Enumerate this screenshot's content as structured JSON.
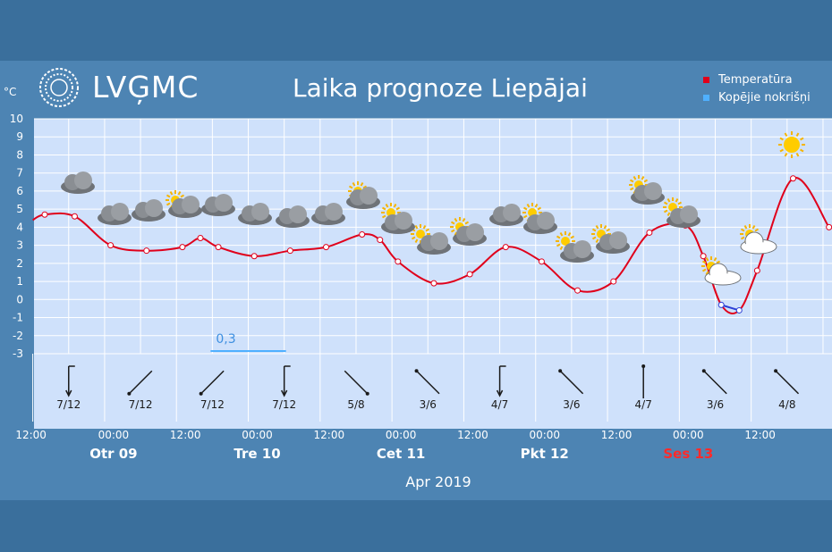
{
  "header": {
    "logo_text": "LVĢMC",
    "title": "Laika prognoze Liepājai",
    "unit": "°C"
  },
  "legend": [
    {
      "label": "Temperatūra",
      "color": "#e0001b"
    },
    {
      "label": "Kopējie nokrišņi",
      "color": "#4fb0ff"
    }
  ],
  "chart_data": {
    "type": "line",
    "title": "Laika prognoze Liepājai",
    "ylabel": "°C",
    "xlabel": "Apr 2019",
    "ylim": [
      -3,
      10
    ],
    "yticks": [
      "-3",
      "-2",
      "-1",
      "0",
      "1",
      "2",
      "3",
      "4",
      "5",
      "6",
      "7",
      "8",
      "9",
      "10"
    ],
    "grid": true,
    "legend_position": "top-right",
    "x_ticks": [
      "12:00",
      "00:00",
      "12:00",
      "00:00",
      "12:00",
      "00:00",
      "12:00",
      "00:00",
      "12:00",
      "00:00",
      "12:00"
    ],
    "x_tick_hours": [
      12,
      24,
      36,
      48,
      60,
      72,
      84,
      96,
      108,
      120,
      132
    ],
    "day_labels": [
      {
        "label": "Otr 09",
        "hour": 24,
        "color": "#ffffff"
      },
      {
        "label": "Tre 10",
        "hour": 48,
        "color": "#ffffff"
      },
      {
        "label": "Cet 11",
        "hour": 72,
        "color": "#ffffff"
      },
      {
        "label": "Pkt 12",
        "hour": 96,
        "color": "#ffffff"
      },
      {
        "label": "Ses 13",
        "hour": 120,
        "color": "#ff2a2a"
      }
    ],
    "series": [
      {
        "name": "Temperatūra",
        "color": "#e0001b",
        "below_zero_color": "#2b3fd6",
        "hours": [
          8,
          13,
          19,
          25,
          31,
          34,
          37,
          43,
          49,
          55,
          61,
          64,
          67,
          73,
          79,
          85,
          91,
          97,
          103,
          109,
          115,
          118,
          121,
          124,
          127,
          133,
          139
        ],
        "values": [
          4.7,
          4.6,
          3.0,
          2.7,
          2.9,
          3.4,
          2.9,
          2.4,
          2.7,
          2.9,
          3.6,
          3.3,
          2.1,
          0.9,
          1.4,
          2.9,
          2.1,
          0.5,
          1.0,
          3.7,
          4.1,
          2.4,
          -0.3,
          -0.6,
          1.6,
          6.7,
          4.0
        ]
      },
      {
        "name": "Kopējie nokrišņi",
        "color": "#4fb0ff",
        "bars": [
          {
            "hour": 36,
            "value": 0.3
          }
        ]
      }
    ],
    "precip_label": "0,3",
    "wind": [
      {
        "hour": 12,
        "label": "7/12"
      },
      {
        "hour": 24,
        "label": "7/12"
      },
      {
        "hour": 36,
        "label": "7/12"
      },
      {
        "hour": 48,
        "label": "7/12"
      },
      {
        "hour": 60,
        "label": "5/8"
      },
      {
        "hour": 72,
        "label": "3/6"
      },
      {
        "hour": 84,
        "label": "4/7"
      },
      {
        "hour": 96,
        "label": "3/6"
      },
      {
        "hour": 108,
        "label": "4/7"
      },
      {
        "hour": 120,
        "label": "3/6"
      },
      {
        "hour": 132,
        "label": "4/8"
      }
    ]
  }
}
